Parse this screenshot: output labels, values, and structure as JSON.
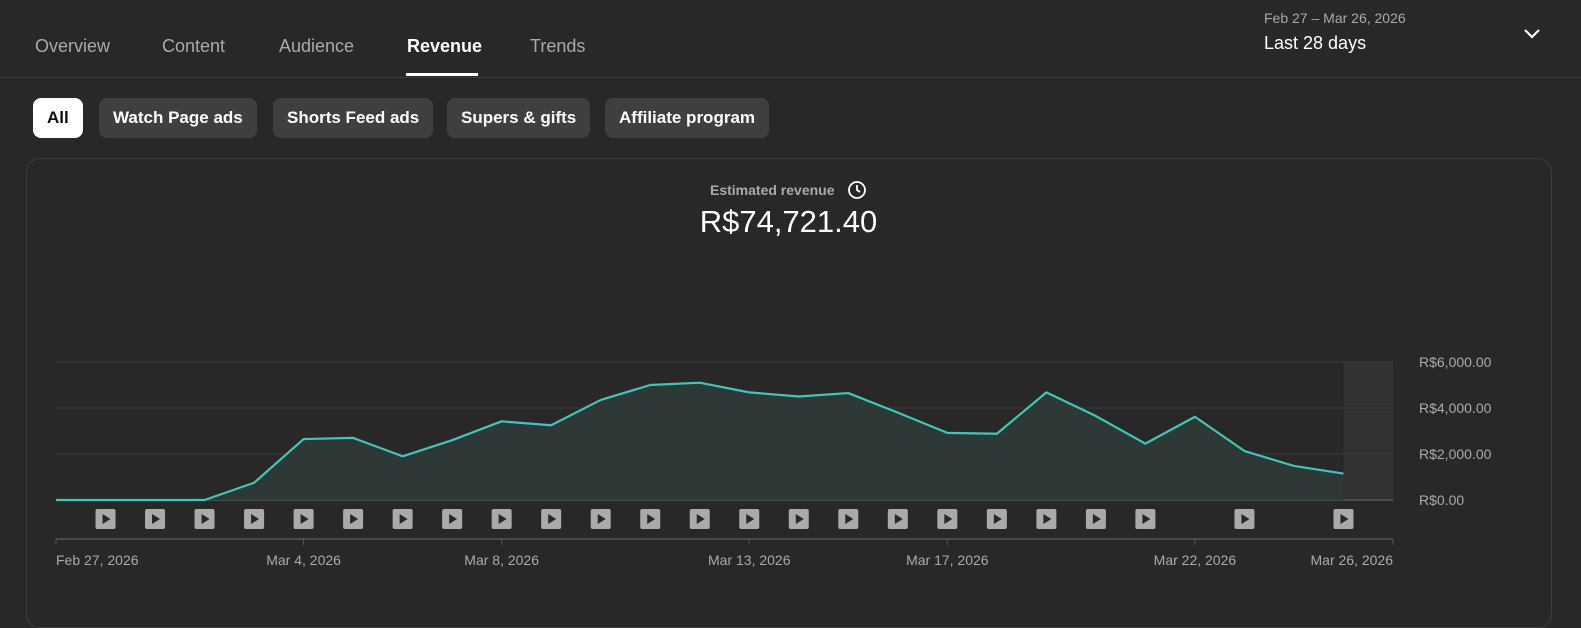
{
  "tabs": [
    {
      "label": "Overview"
    },
    {
      "label": "Content"
    },
    {
      "label": "Audience"
    },
    {
      "label": "Revenue"
    },
    {
      "label": "Trends"
    }
  ],
  "date_picker": {
    "range": "Feb 27 – Mar 26, 2026",
    "label": "Last 28 days",
    "icon": "chevron-down-icon"
  },
  "chips": [
    {
      "label": "All",
      "selected": true
    },
    {
      "label": "Watch Page ads"
    },
    {
      "label": "Shorts Feed ads"
    },
    {
      "label": "Supers & gifts"
    },
    {
      "label": "Affiliate program"
    }
  ],
  "metric": {
    "label": "Estimated revenue",
    "value": "R$74,721.40",
    "icon": "clock-icon"
  },
  "colors": {
    "line": "#3ec8b8",
    "fill": "#2f3a38",
    "grid": "#3a3a3a",
    "axis_text": "#aaaaaa"
  },
  "chart_data": {
    "type": "area",
    "title": "",
    "ylim": [
      0,
      6000
    ],
    "y_ticks": [
      {
        "value": 0,
        "label": "R$0.00"
      },
      {
        "value": 2000,
        "label": "R$2,000.00"
      },
      {
        "value": 4000,
        "label": "R$4,000.00"
      },
      {
        "value": 6000,
        "label": "R$6,000.00"
      }
    ],
    "x": [
      "2026-02-27",
      "2026-02-28",
      "2026-03-01",
      "2026-03-02",
      "2026-03-03",
      "2026-03-04",
      "2026-03-05",
      "2026-03-06",
      "2026-03-07",
      "2026-03-08",
      "2026-03-09",
      "2026-03-10",
      "2026-03-11",
      "2026-03-12",
      "2026-03-13",
      "2026-03-14",
      "2026-03-15",
      "2026-03-16",
      "2026-03-17",
      "2026-03-18",
      "2026-03-19",
      "2026-03-20",
      "2026-03-21",
      "2026-03-22",
      "2026-03-23",
      "2026-03-24",
      "2026-03-25",
      "2026-03-26"
    ],
    "values": [
      0,
      0,
      0,
      0,
      750,
      2650,
      2700,
      1900,
      2600,
      3420,
      3250,
      4350,
      5000,
      5100,
      4680,
      4500,
      4650,
      3800,
      2920,
      2880,
      4680,
      3650,
      2450,
      3620,
      2130,
      1480,
      1150,
      1150
    ],
    "partial_last_point": true,
    "x_ticks": [
      {
        "index": 0,
        "label": "Feb 27, 2026"
      },
      {
        "index": 5,
        "label": "Mar 4, 2026"
      },
      {
        "index": 9,
        "label": "Mar 8, 2026"
      },
      {
        "index": 14,
        "label": "Mar 13, 2026"
      },
      {
        "index": 18,
        "label": "Mar 17, 2026"
      },
      {
        "index": 23,
        "label": "Mar 22, 2026"
      },
      {
        "index": 27,
        "label": "Mar 26, 2026"
      }
    ],
    "video_markers": [
      1,
      2,
      3,
      4,
      5,
      6,
      7,
      8,
      9,
      10,
      11,
      12,
      13,
      14,
      15,
      16,
      17,
      18,
      19,
      20,
      21,
      22,
      24,
      26
    ],
    "grid": true
  }
}
